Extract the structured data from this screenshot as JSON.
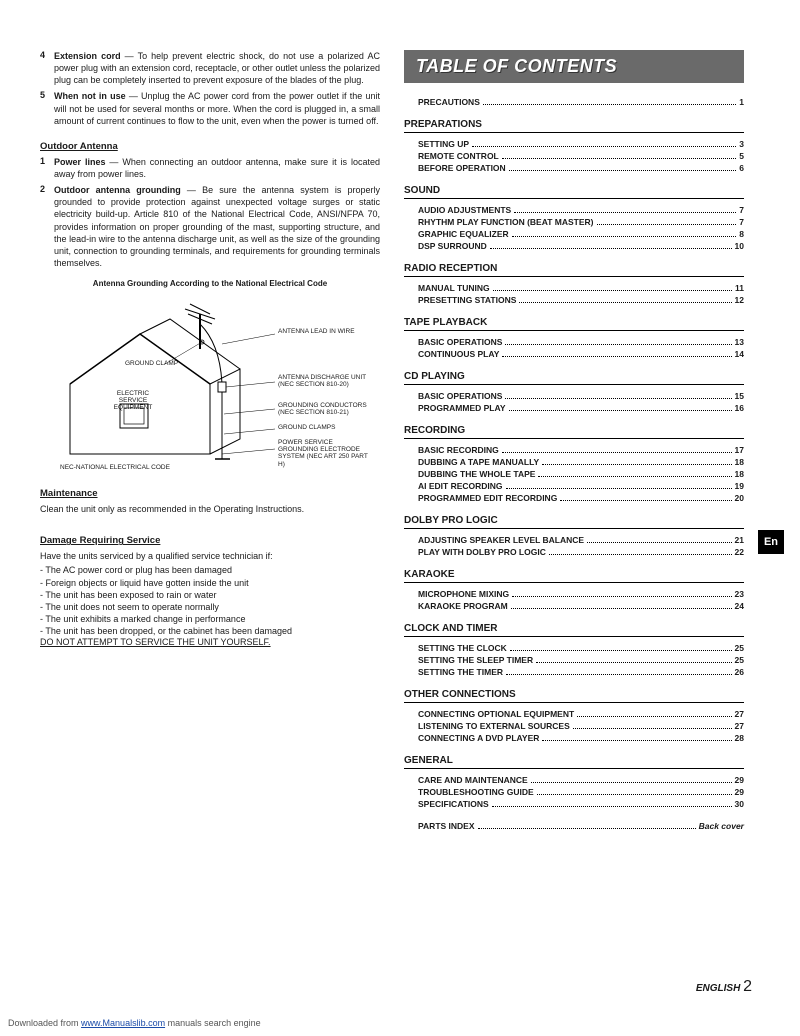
{
  "left": {
    "items": [
      {
        "num": "4",
        "term": "Extension cord",
        "text": " — To help prevent electric shock, do not use a polarized AC power plug with an extension cord, receptacle, or other outlet unless the polarized plug can be completely inserted to prevent exposure of the blades of the plug."
      },
      {
        "num": "5",
        "term": "When not in use",
        "text": " — Unplug the AC power cord from the power outlet if the unit will not be used for several months or more. When the cord is plugged in, a small amount of current continues to flow to the unit, even when the power is turned off."
      }
    ],
    "outdoor_title": "Outdoor Antenna",
    "outdoor_items": [
      {
        "num": "1",
        "term": "Power lines",
        "text": " — When connecting an outdoor antenna, make sure it is located away from power lines."
      },
      {
        "num": "2",
        "term": "Outdoor antenna grounding",
        "text": " — Be sure the antenna system is properly grounded to provide protection against unexpected voltage surges or static electricity build-up. Article 810 of the National Electrical Code, ANSI/NFPA 70, provides information on proper grounding of the mast, supporting structure, and the lead-in wire to the antenna discharge unit, as well as the size of the grounding unit, connection to grounding terminals, and requirements for grounding terminals themselves."
      }
    ],
    "diagram_caption": "Antenna Grounding According to the National Electrical Code",
    "diagram_labels": {
      "antenna_lead": "ANTENNA LEAD IN WIRE",
      "ground_clamp": "GROUND CLAMP",
      "discharge": "ANTENNA DISCHARGE UNIT (NEC SECTION 810-20)",
      "electric": "ELECTRIC SERVICE EQUIPMENT",
      "conductors": "GROUNDING CONDUCTORS (NEC SECTION 810-21)",
      "clamps": "GROUND CLAMPS",
      "power_service": "POWER SERVICE GROUNDING ELECTRODE SYSTEM (NEC ART 250 PART H)",
      "nec": "NEC-NATIONAL ELECTRICAL CODE"
    },
    "maintenance_title": "Maintenance",
    "maintenance_text": "Clean the unit only as recommended in the Operating Instructions.",
    "damage_title": "Damage Requiring Service",
    "damage_intro": "Have the units serviced by a qualified service technician if:",
    "damage_list": [
      "- The AC power cord or plug has been damaged",
      "- Foreign objects or liquid have gotten inside the unit",
      "- The unit has been exposed to rain or water",
      "- The unit does not seem to operate normally",
      "- The unit exhibits a marked change in performance",
      "- The unit has been dropped, or the cabinet has been damaged"
    ],
    "damage_warning": "DO NOT ATTEMPT TO SERVICE THE UNIT YOURSELF."
  },
  "toc": {
    "header": "TABLE OF CONTENTS",
    "precautions": {
      "label": "PRECAUTIONS",
      "page": "1"
    },
    "sections": [
      {
        "title": "PREPARATIONS",
        "items": [
          {
            "label": "SETTING UP",
            "page": "3"
          },
          {
            "label": "REMOTE CONTROL",
            "page": "5"
          },
          {
            "label": "BEFORE OPERATION",
            "page": "6"
          }
        ]
      },
      {
        "title": "SOUND",
        "items": [
          {
            "label": "AUDIO ADJUSTMENTS",
            "page": "7"
          },
          {
            "label": "RHYTHM PLAY FUNCTION (BEAT MASTER)",
            "page": "7"
          },
          {
            "label": "GRAPHIC EQUALIZER",
            "page": "8"
          },
          {
            "label": "DSP SURROUND",
            "page": "10"
          }
        ]
      },
      {
        "title": "RADIO RECEPTION",
        "items": [
          {
            "label": "MANUAL TUNING",
            "page": "11"
          },
          {
            "label": "PRESETTING STATIONS",
            "page": "12"
          }
        ]
      },
      {
        "title": "TAPE PLAYBACK",
        "items": [
          {
            "label": "BASIC OPERATIONS",
            "page": "13"
          },
          {
            "label": "CONTINUOUS PLAY",
            "page": "14"
          }
        ]
      },
      {
        "title": "CD PLAYING",
        "items": [
          {
            "label": "BASIC OPERATIONS",
            "page": "15"
          },
          {
            "label": "PROGRAMMED PLAY",
            "page": "16"
          }
        ]
      },
      {
        "title": "RECORDING",
        "items": [
          {
            "label": "BASIC RECORDING",
            "page": "17"
          },
          {
            "label": "DUBBING A TAPE MANUALLY",
            "page": "18"
          },
          {
            "label": "DUBBING THE WHOLE TAPE",
            "page": "18"
          },
          {
            "label": "AI EDIT RECORDING",
            "page": "19"
          },
          {
            "label": "PROGRAMMED EDIT RECORDING",
            "page": "20"
          }
        ]
      },
      {
        "title": "DOLBY PRO LOGIC",
        "items": [
          {
            "label": "ADJUSTING SPEAKER LEVEL BALANCE",
            "page": "21"
          },
          {
            "label": "PLAY WITH DOLBY PRO LOGIC",
            "page": "22"
          }
        ]
      },
      {
        "title": "KARAOKE",
        "items": [
          {
            "label": "MICROPHONE MIXING",
            "page": "23"
          },
          {
            "label": "KARAOKE PROGRAM",
            "page": "24"
          }
        ]
      },
      {
        "title": "CLOCK AND TIMER",
        "items": [
          {
            "label": "SETTING THE CLOCK",
            "page": "25"
          },
          {
            "label": "SETTING THE SLEEP TIMER",
            "page": "25"
          },
          {
            "label": "SETTING THE TIMER",
            "page": "26"
          }
        ]
      },
      {
        "title": "OTHER CONNECTIONS",
        "items": [
          {
            "label": "CONNECTING OPTIONAL EQUIPMENT",
            "page": "27"
          },
          {
            "label": "LISTENING TO EXTERNAL SOURCES",
            "page": "27"
          },
          {
            "label": "CONNECTING A DVD PLAYER",
            "page": "28"
          }
        ]
      },
      {
        "title": "GENERAL",
        "items": [
          {
            "label": "CARE AND MAINTENANCE",
            "page": "29"
          },
          {
            "label": "TROUBLESHOOTING GUIDE",
            "page": "29"
          },
          {
            "label": "SPECIFICATIONS",
            "page": "30"
          }
        ]
      }
    ],
    "parts_index": {
      "label": "PARTS INDEX",
      "page": "Back cover"
    }
  },
  "en_tab": "En",
  "footer": {
    "english": "ENGLISH",
    "page_num": "2",
    "downloaded_prefix": "Downloaded from ",
    "downloaded_link": "www.Manualslib.com",
    "downloaded_suffix": " manuals search engine"
  },
  "colors": {
    "toc_header_bg": "#6a6a6a",
    "toc_header_fg": "#ffffff",
    "en_tab_bg": "#000000",
    "en_tab_fg": "#ffffff",
    "link": "#1a4ba8"
  }
}
